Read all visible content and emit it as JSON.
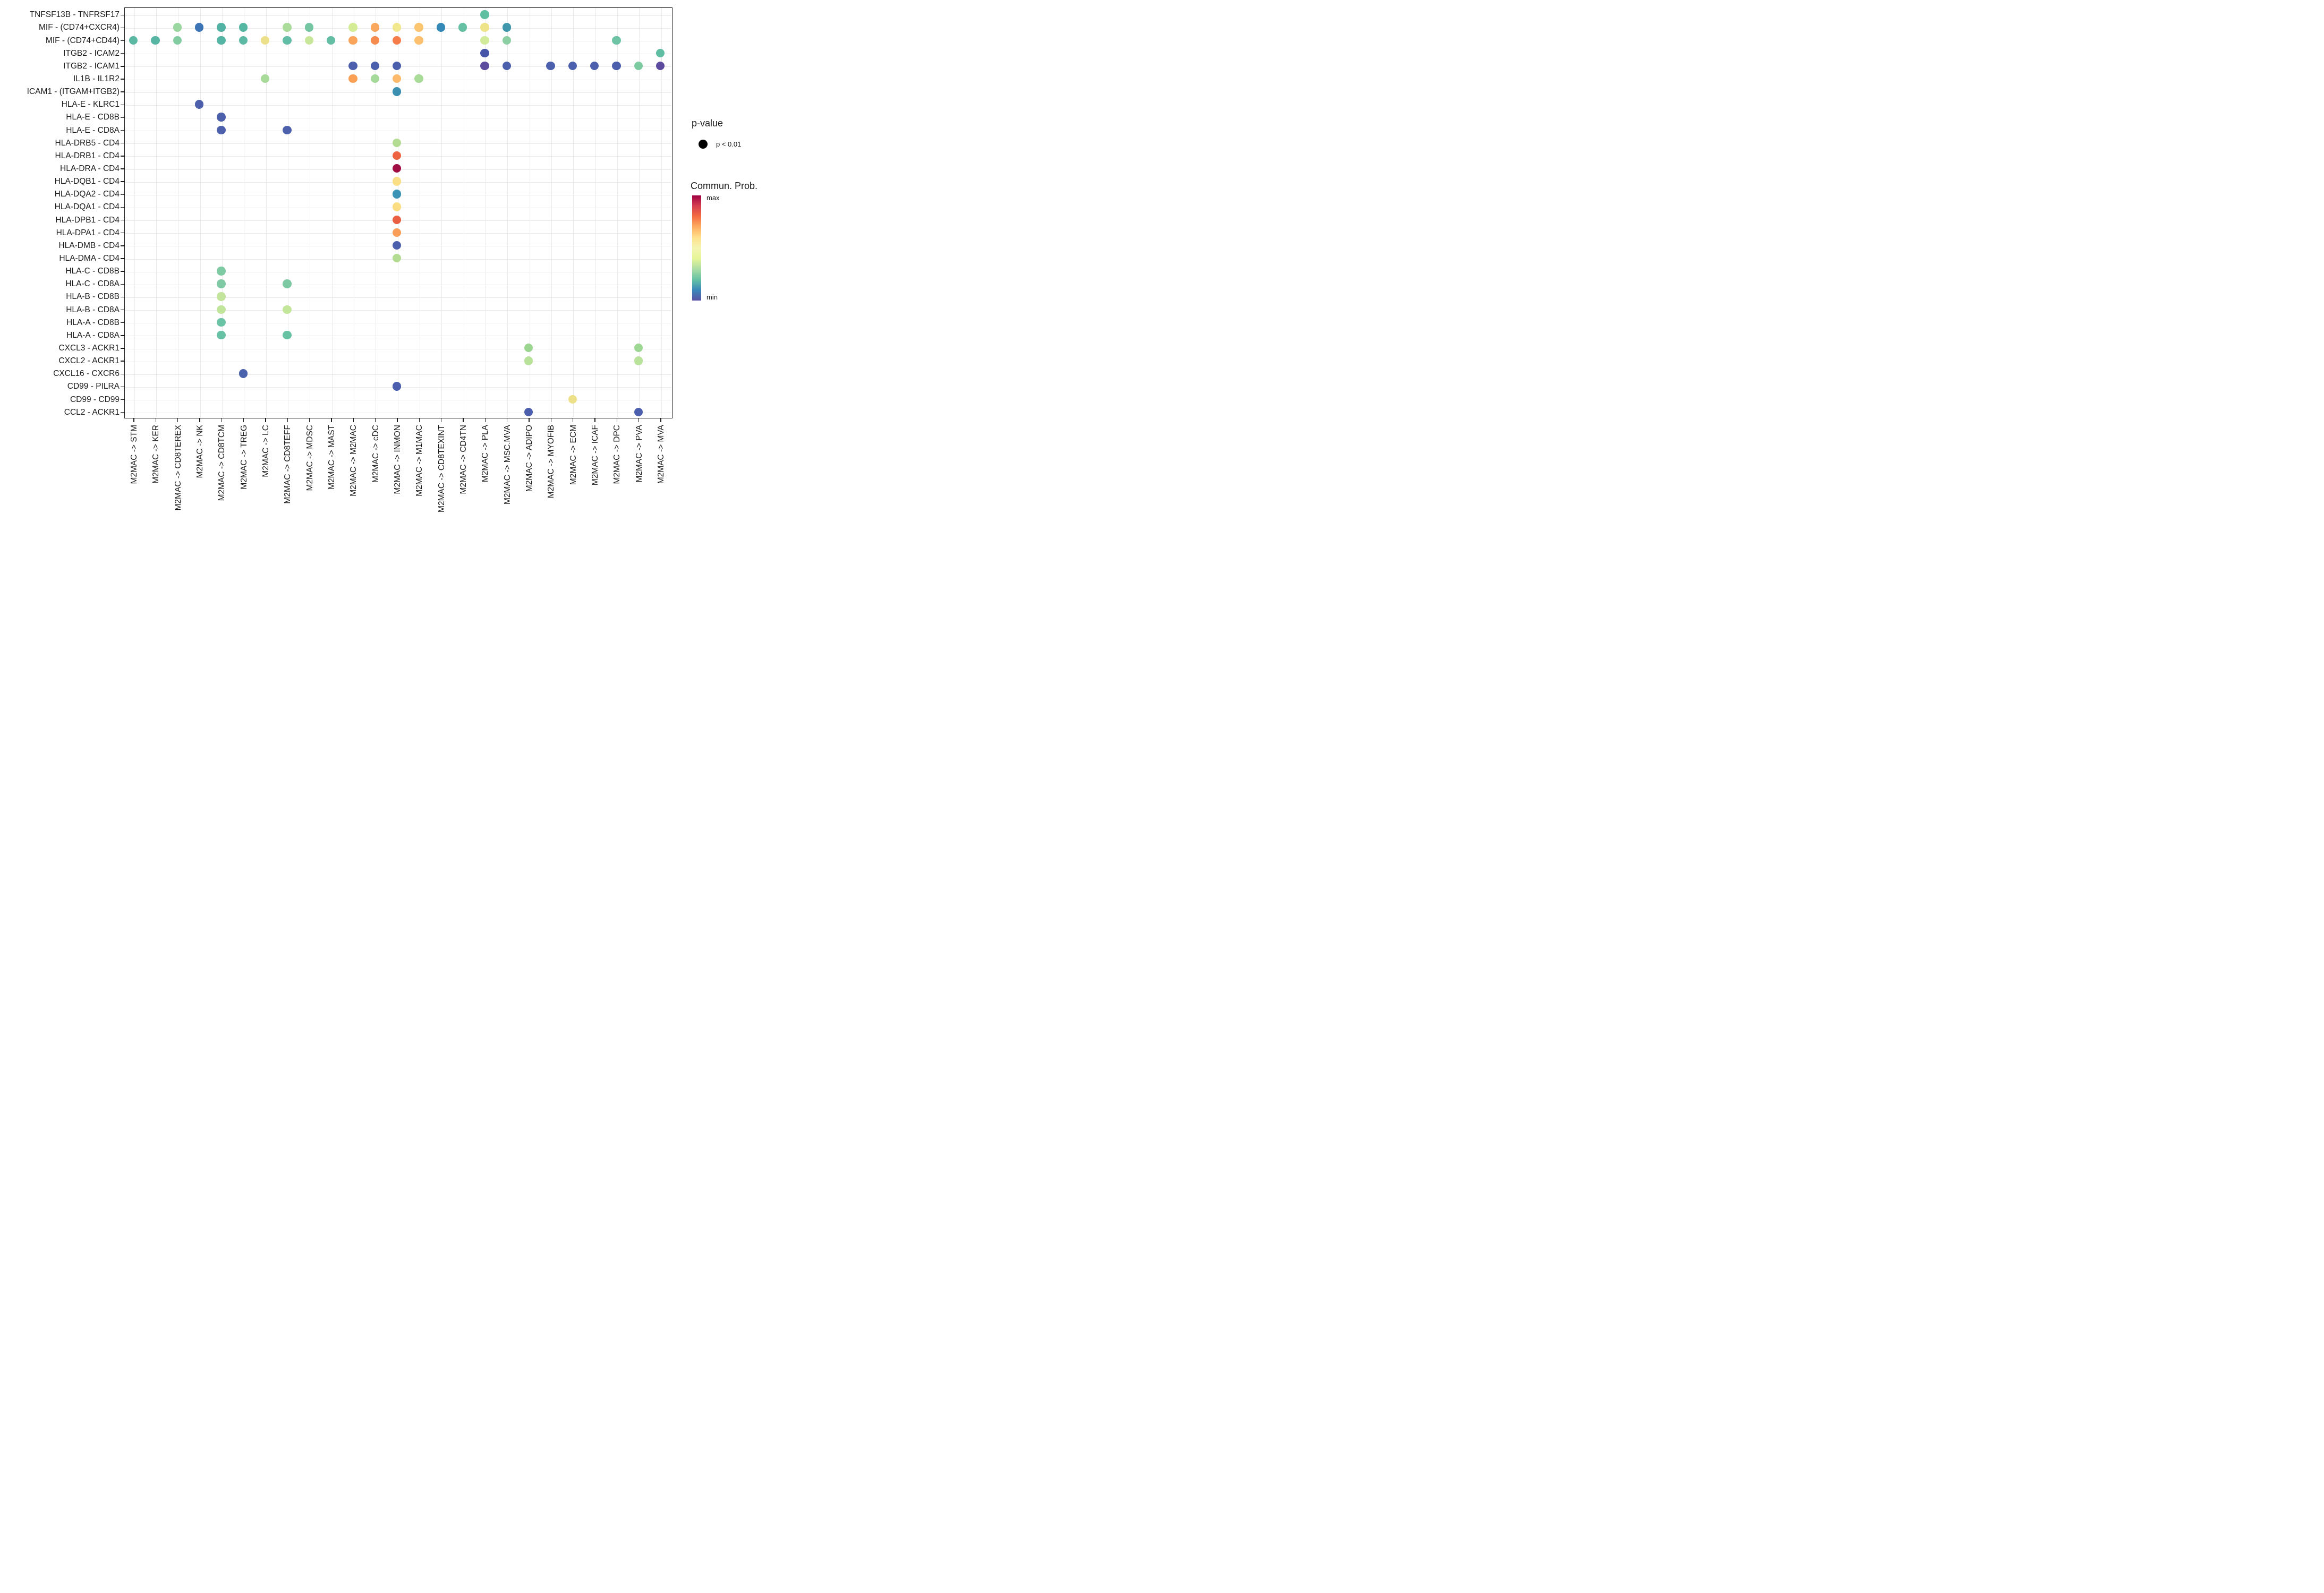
{
  "chart_data": {
    "type": "scatter",
    "subtype": "bubble-dotplot",
    "title": "",
    "xlabel": "",
    "ylabel": "",
    "grid": true,
    "x_categories": [
      "M2MAC -> STM",
      "M2MAC -> KER",
      "M2MAC -> CD8TEREX",
      "M2MAC -> NK",
      "M2MAC -> CD8TCM",
      "M2MAC -> TREG",
      "M2MAC -> LC",
      "M2MAC -> CD8TEFF",
      "M2MAC -> MDSC",
      "M2MAC -> MAST",
      "M2MAC -> M2MAC",
      "M2MAC -> cDC",
      "M2MAC -> INMON",
      "M2MAC -> M1MAC",
      "M2MAC -> CD8TEXINT",
      "M2MAC -> CD4TN",
      "M2MAC -> PLA",
      "M2MAC -> MSC.MVA",
      "M2MAC -> ADIPO",
      "M2MAC -> MYOFIB",
      "M2MAC -> ECM",
      "M2MAC -> ICAF",
      "M2MAC -> DPC",
      "M2MAC -> PVA",
      "M2MAC -> MVA"
    ],
    "y_categories": [
      "TNFSF13B - TNFRSF17",
      "MIF - (CD74+CXCR4)",
      "MIF - (CD74+CD44)",
      "ITGB2 - ICAM2",
      "ITGB2 - ICAM1",
      "IL1B - IL1R2",
      "ICAM1 - (ITGAM+ITGB2)",
      "HLA-E - KLRC1",
      "HLA-E - CD8B",
      "HLA-E - CD8A",
      "HLA-DRB5 - CD4",
      "HLA-DRB1 - CD4",
      "HLA-DRA - CD4",
      "HLA-DQB1 - CD4",
      "HLA-DQA2 - CD4",
      "HLA-DQA1 - CD4",
      "HLA-DPB1 - CD4",
      "HLA-DPA1 - CD4",
      "HLA-DMB - CD4",
      "HLA-DMA - CD4",
      "HLA-C - CD8B",
      "HLA-C - CD8A",
      "HLA-B - CD8B",
      "HLA-B - CD8A",
      "HLA-A - CD8B",
      "HLA-A - CD8A",
      "CXCL3 - ACKR1",
      "CXCL2 - ACKR1",
      "CXCL16 - CXCR6",
      "CD99 - PILRA",
      "CD99 - CD99",
      "CCL2 - ACKR1"
    ],
    "points": [
      {
        "y": "TNFSF13B - TNFRSF17",
        "x": "M2MAC -> PLA",
        "color": "#5fbfa0"
      },
      {
        "y": "MIF - (CD74+CXCR4)",
        "x": "M2MAC -> CD8TEREX",
        "color": "#9bd7a0"
      },
      {
        "y": "MIF - (CD74+CXCR4)",
        "x": "M2MAC -> NK",
        "color": "#3d74b5"
      },
      {
        "y": "MIF - (CD74+CXCR4)",
        "x": "M2MAC -> CD8TCM",
        "color": "#52b3a4"
      },
      {
        "y": "MIF - (CD74+CXCR4)",
        "x": "M2MAC -> TREG",
        "color": "#56b7a3"
      },
      {
        "y": "MIF - (CD74+CXCR4)",
        "x": "M2MAC -> CD8TEFF",
        "color": "#abdc9c"
      },
      {
        "y": "MIF - (CD74+CXCR4)",
        "x": "M2MAC -> MDSC",
        "color": "#74c6a3"
      },
      {
        "y": "MIF - (CD74+CXCR4)",
        "x": "M2MAC -> M2MAC",
        "color": "#d3ec95"
      },
      {
        "y": "MIF - (CD74+CXCR4)",
        "x": "M2MAC -> cDC",
        "color": "#f9a85e"
      },
      {
        "y": "MIF - (CD74+CXCR4)",
        "x": "M2MAC -> INMON",
        "color": "#f2e88e"
      },
      {
        "y": "MIF - (CD74+CXCR4)",
        "x": "M2MAC -> M1MAC",
        "color": "#fcc671"
      },
      {
        "y": "MIF - (CD74+CXCR4)",
        "x": "M2MAC -> CD8TEXINT",
        "color": "#3489b7"
      },
      {
        "y": "MIF - (CD74+CXCR4)",
        "x": "M2MAC -> CD4TN",
        "color": "#66c0a4"
      },
      {
        "y": "MIF - (CD74+CXCR4)",
        "x": "M2MAC -> PLA",
        "color": "#efe38a"
      },
      {
        "y": "MIF - (CD74+CXCR4)",
        "x": "M2MAC -> MSC.MVA",
        "color": "#3e97ab"
      },
      {
        "y": "MIF - (CD74+CD44)",
        "x": "M2MAC -> STM",
        "color": "#5bb8a2"
      },
      {
        "y": "MIF - (CD74+CD44)",
        "x": "M2MAC -> KER",
        "color": "#57b5a4"
      },
      {
        "y": "MIF - (CD74+CD44)",
        "x": "M2MAC -> CD8TEREX",
        "color": "#83cba1"
      },
      {
        "y": "MIF - (CD74+CD44)",
        "x": "M2MAC -> CD8TCM",
        "color": "#54b5a5"
      },
      {
        "y": "MIF - (CD74+CD44)",
        "x": "M2MAC -> TREG",
        "color": "#5cbaa4"
      },
      {
        "y": "MIF - (CD74+CD44)",
        "x": "M2MAC -> LC",
        "color": "#ece18a"
      },
      {
        "y": "MIF - (CD74+CD44)",
        "x": "M2MAC -> CD8TEFF",
        "color": "#62bda6"
      },
      {
        "y": "MIF - (CD74+CD44)",
        "x": "M2MAC -> MDSC",
        "color": "#c8e79b"
      },
      {
        "y": "MIF - (CD74+CD44)",
        "x": "M2MAC -> MAST",
        "color": "#63bea4"
      },
      {
        "y": "MIF - (CD74+CD44)",
        "x": "M2MAC -> M2MAC",
        "color": "#f9a35b"
      },
      {
        "y": "MIF - (CD74+CD44)",
        "x": "M2MAC -> cDC",
        "color": "#f68b4e"
      },
      {
        "y": "MIF - (CD74+CD44)",
        "x": "M2MAC -> INMON",
        "color": "#f57d4a"
      },
      {
        "y": "MIF - (CD74+CD44)",
        "x": "M2MAC -> M1MAC",
        "color": "#fcc06e"
      },
      {
        "y": "MIF - (CD74+CD44)",
        "x": "M2MAC -> PLA",
        "color": "#d2eb9b"
      },
      {
        "y": "MIF - (CD74+CD44)",
        "x": "M2MAC -> MSC.MVA",
        "color": "#8bcfa2"
      },
      {
        "y": "MIF - (CD74+CD44)",
        "x": "M2MAC -> DPC",
        "color": "#6ec4a4"
      },
      {
        "y": "ITGB2 - ICAM2",
        "x": "M2MAC -> PLA",
        "color": "#4655a8"
      },
      {
        "y": "ITGB2 - ICAM2",
        "x": "M2MAC -> MVA",
        "color": "#5ebda2"
      },
      {
        "y": "ITGB2 - ICAM1",
        "x": "M2MAC -> M2MAC",
        "color": "#4c5fad"
      },
      {
        "y": "ITGB2 - ICAM1",
        "x": "M2MAC -> cDC",
        "color": "#4c5fad"
      },
      {
        "y": "ITGB2 - ICAM1",
        "x": "M2MAC -> INMON",
        "color": "#4c5fad"
      },
      {
        "y": "ITGB2 - ICAM1",
        "x": "M2MAC -> PLA",
        "color": "#5d4b9e"
      },
      {
        "y": "ITGB2 - ICAM1",
        "x": "M2MAC -> MSC.MVA",
        "color": "#4c5fad"
      },
      {
        "y": "ITGB2 - ICAM1",
        "x": "M2MAC -> MYOFIB",
        "color": "#4c5fad"
      },
      {
        "y": "ITGB2 - ICAM1",
        "x": "M2MAC -> ECM",
        "color": "#4c5fad"
      },
      {
        "y": "ITGB2 - ICAM1",
        "x": "M2MAC -> ICAF",
        "color": "#4c5fad"
      },
      {
        "y": "ITGB2 - ICAM1",
        "x": "M2MAC -> DPC",
        "color": "#4c5fad"
      },
      {
        "y": "ITGB2 - ICAM1",
        "x": "M2MAC -> PVA",
        "color": "#7cca9f"
      },
      {
        "y": "ITGB2 - ICAM1",
        "x": "M2MAC -> MVA",
        "color": "#5b4a9e"
      },
      {
        "y": "IL1B - IL1R2",
        "x": "M2MAC -> LC",
        "color": "#a8db9a"
      },
      {
        "y": "IL1B - IL1R2",
        "x": "M2MAC -> M2MAC",
        "color": "#f9a055"
      },
      {
        "y": "IL1B - IL1R2",
        "x": "M2MAC -> cDC",
        "color": "#a5da9b"
      },
      {
        "y": "IL1B - IL1R2",
        "x": "M2MAC -> INMON",
        "color": "#fdba6b"
      },
      {
        "y": "IL1B - IL1R2",
        "x": "M2MAC -> M1MAC",
        "color": "#a9dc99"
      },
      {
        "y": "ICAM1 - (ITGAM+ITGB2)",
        "x": "M2MAC -> INMON",
        "color": "#3b90b1"
      },
      {
        "y": "HLA-E - KLRC1",
        "x": "M2MAC -> NK",
        "color": "#4c60ac"
      },
      {
        "y": "HLA-E - CD8B",
        "x": "M2MAC -> CD8TCM",
        "color": "#4c60ac"
      },
      {
        "y": "HLA-E - CD8A",
        "x": "M2MAC -> CD8TCM",
        "color": "#4c60ac"
      },
      {
        "y": "HLA-E - CD8A",
        "x": "M2MAC -> CD8TEFF",
        "color": "#4c60ac"
      },
      {
        "y": "HLA-DRB5 - CD4",
        "x": "M2MAC -> INMON",
        "color": "#b4dc92"
      },
      {
        "y": "HLA-DRB1 - CD4",
        "x": "M2MAC -> INMON",
        "color": "#ee6341"
      },
      {
        "y": "HLA-DRA - CD4",
        "x": "M2MAC -> INMON",
        "color": "#a00d42"
      },
      {
        "y": "HLA-DQB1 - CD4",
        "x": "M2MAC -> INMON",
        "color": "#fbdf87"
      },
      {
        "y": "HLA-DQA2 - CD4",
        "x": "M2MAC -> INMON",
        "color": "#3a92b5"
      },
      {
        "y": "HLA-DQA1 - CD4",
        "x": "M2MAC -> INMON",
        "color": "#fbdd82"
      },
      {
        "y": "HLA-DPB1 - CD4",
        "x": "M2MAC -> INMON",
        "color": "#ea5e41"
      },
      {
        "y": "HLA-DPA1 - CD4",
        "x": "M2MAC -> INMON",
        "color": "#f99d58"
      },
      {
        "y": "HLA-DMB - CD4",
        "x": "M2MAC -> INMON",
        "color": "#4c5fad"
      },
      {
        "y": "HLA-DMA - CD4",
        "x": "M2MAC -> INMON",
        "color": "#b4dc92"
      },
      {
        "y": "HLA-C - CD8B",
        "x": "M2MAC -> CD8TCM",
        "color": "#7ecaa3"
      },
      {
        "y": "HLA-C - CD8A",
        "x": "M2MAC -> CD8TCM",
        "color": "#7fcaa4"
      },
      {
        "y": "HLA-C - CD8A",
        "x": "M2MAC -> CD8TEFF",
        "color": "#7dc9a4"
      },
      {
        "y": "HLA-B - CD8B",
        "x": "M2MAC -> CD8TCM",
        "color": "#c3e59b"
      },
      {
        "y": "HLA-B - CD8A",
        "x": "M2MAC -> CD8TCM",
        "color": "#c2e59c"
      },
      {
        "y": "HLA-B - CD8A",
        "x": "M2MAC -> CD8TEFF",
        "color": "#c3e69b"
      },
      {
        "y": "HLA-A - CD8B",
        "x": "M2MAC -> CD8TCM",
        "color": "#6ac3a4"
      },
      {
        "y": "HLA-A - CD8A",
        "x": "M2MAC -> CD8TCM",
        "color": "#66c1a5"
      },
      {
        "y": "HLA-A - CD8A",
        "x": "M2MAC -> CD8TEFF",
        "color": "#67c2a4"
      },
      {
        "y": "CXCL3 - ACKR1",
        "x": "M2MAC -> ADIPO",
        "color": "#9cd58f"
      },
      {
        "y": "CXCL3 - ACKR1",
        "x": "M2MAC -> PVA",
        "color": "#9ed694"
      },
      {
        "y": "CXCL2 - ACKR1",
        "x": "M2MAC -> ADIPO",
        "color": "#b8e29a"
      },
      {
        "y": "CXCL2 - ACKR1",
        "x": "M2MAC -> PVA",
        "color": "#b9e29b"
      },
      {
        "y": "CXCL16 - CXCR6",
        "x": "M2MAC -> TREG",
        "color": "#4a61ac"
      },
      {
        "y": "CD99 - PILRA",
        "x": "M2MAC -> INMON",
        "color": "#4c5fae"
      },
      {
        "y": "CD99 - CD99",
        "x": "M2MAC -> ECM",
        "color": "#ece189"
      },
      {
        "y": "CCL2 - ACKR1",
        "x": "M2MAC -> ADIPO",
        "color": "#4c5fae"
      },
      {
        "y": "CCL2 - ACKR1",
        "x": "M2MAC -> PVA",
        "color": "#4c5fae"
      }
    ],
    "legend": {
      "p_value_title": "p-value",
      "p_value_entry": "p < 0.01",
      "p_value_dot_color": "#000000",
      "colorbar_title": "Commun. Prob.",
      "max_label": "max",
      "min_label": "min",
      "colorbar_colors_top_to_bottom": [
        "#9e0142",
        "#d53e4f",
        "#f46d43",
        "#fdae61",
        "#fee08b",
        "#f5f5b1",
        "#e6f598",
        "#abdda4",
        "#66c2a5",
        "#3a87b8",
        "#5a53a5"
      ]
    },
    "layout": {
      "grid_color": "#e9e9e9",
      "axis_color": "#1a1a1a",
      "background": "#ffffff"
    }
  }
}
